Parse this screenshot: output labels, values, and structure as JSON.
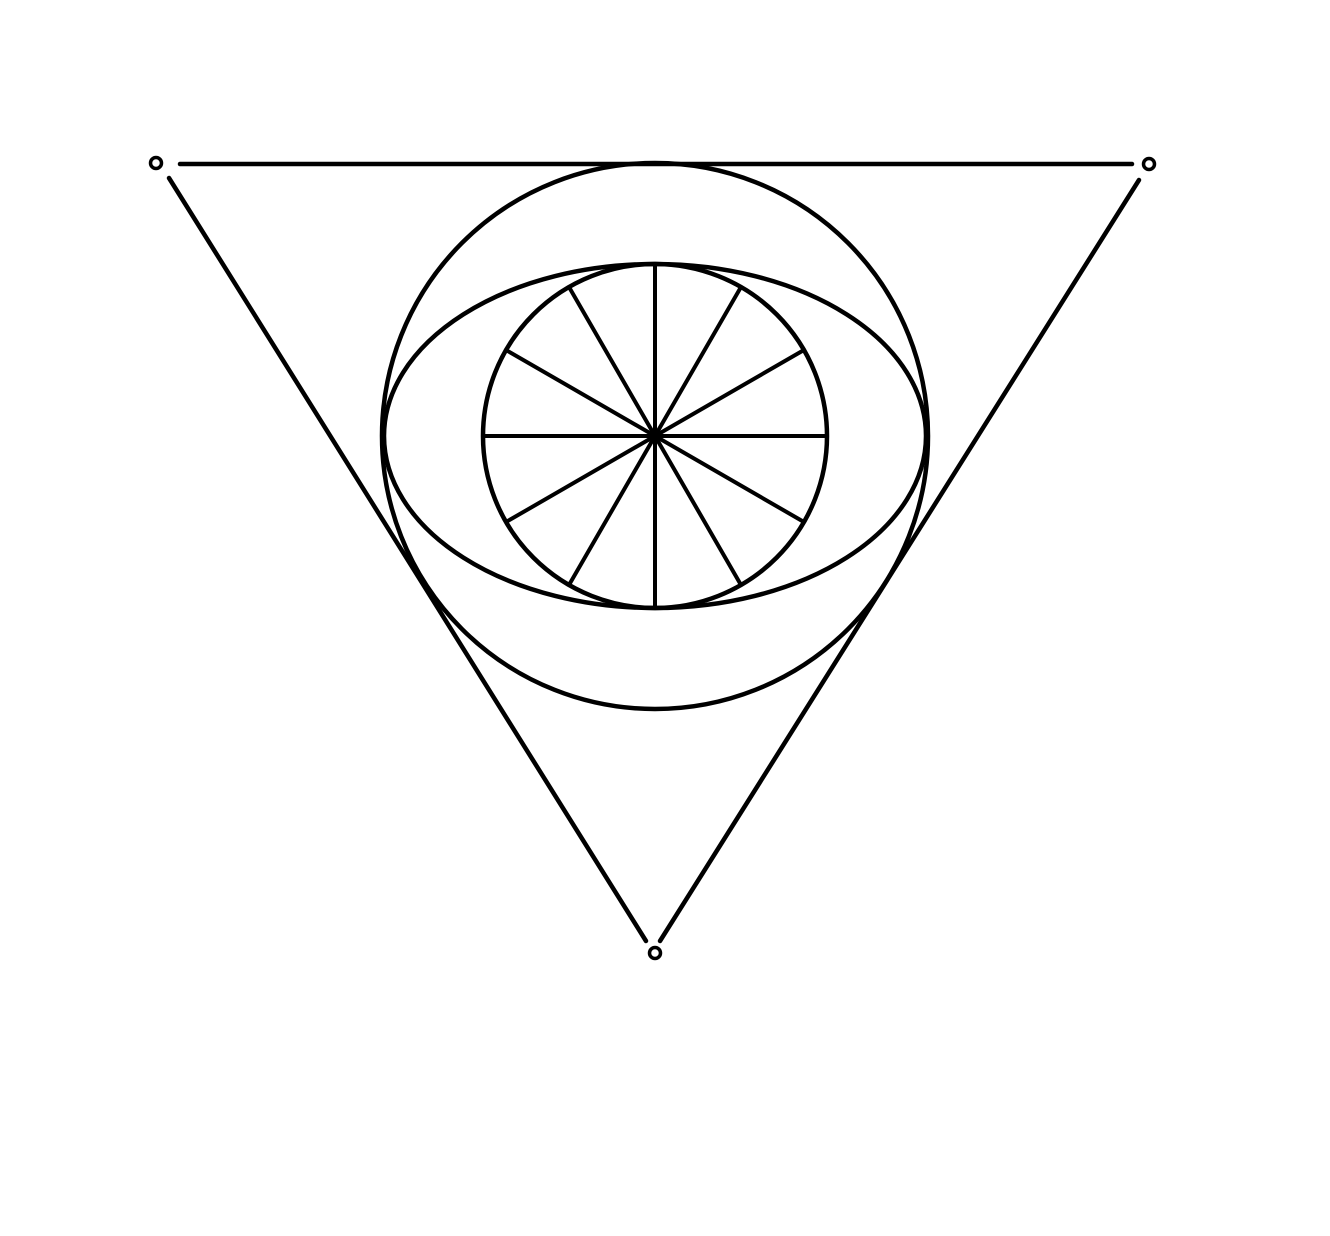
{
  "figure": {
    "background_color": "#ffffff",
    "stroke_color": "#000000",
    "components": [
      "triangle-edges",
      "vertex-markers",
      "outer-circle",
      "horizontal-ellipse",
      "inner-wheel",
      "wheel-spokes"
    ],
    "triangle": {
      "vertices": [
        "top-left",
        "top-right",
        "bottom"
      ],
      "vertex_marker_shape": "small-open-circle"
    },
    "inner_wheel": {
      "spoke_count": 12
    }
  }
}
